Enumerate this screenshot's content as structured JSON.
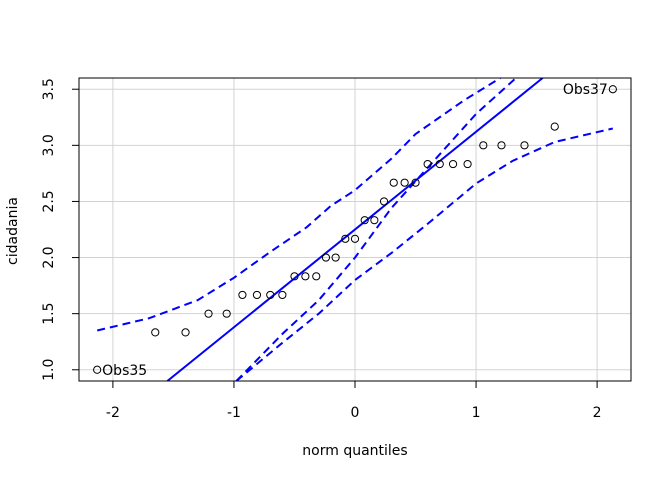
{
  "chart_data": {
    "type": "scatter",
    "title": "",
    "xlabel": "norm quantiles",
    "ylabel": "cidadania",
    "xlim": [
      -2.28,
      2.28
    ],
    "ylim": [
      0.9,
      3.6
    ],
    "x_ticks": [
      -2,
      -1,
      0,
      1,
      2
    ],
    "x_tick_labels": [
      "-2",
      "-1",
      "0",
      "1",
      "2"
    ],
    "y_ticks": [
      1.0,
      1.5,
      2.0,
      2.5,
      3.0,
      3.5
    ],
    "y_tick_labels": [
      "1.0",
      "1.5",
      "2.0",
      "2.5",
      "3.0",
      "3.5"
    ],
    "grid": true,
    "points": [
      {
        "x": -2.13,
        "y": 1.0
      },
      {
        "x": -1.65,
        "y": 1.333
      },
      {
        "x": -1.4,
        "y": 1.333
      },
      {
        "x": -1.21,
        "y": 1.5
      },
      {
        "x": -1.06,
        "y": 1.5
      },
      {
        "x": -0.93,
        "y": 1.667
      },
      {
        "x": -0.81,
        "y": 1.667
      },
      {
        "x": -0.7,
        "y": 1.667
      },
      {
        "x": -0.6,
        "y": 1.667
      },
      {
        "x": -0.5,
        "y": 1.833
      },
      {
        "x": -0.41,
        "y": 1.833
      },
      {
        "x": -0.32,
        "y": 1.833
      },
      {
        "x": -0.24,
        "y": 2.0
      },
      {
        "x": -0.16,
        "y": 2.0
      },
      {
        "x": -0.08,
        "y": 2.167
      },
      {
        "x": 0.0,
        "y": 2.167
      },
      {
        "x": 0.08,
        "y": 2.333
      },
      {
        "x": 0.16,
        "y": 2.333
      },
      {
        "x": 0.24,
        "y": 2.5
      },
      {
        "x": 0.32,
        "y": 2.667
      },
      {
        "x": 0.41,
        "y": 2.667
      },
      {
        "x": 0.5,
        "y": 2.667
      },
      {
        "x": 0.6,
        "y": 2.833
      },
      {
        "x": 0.7,
        "y": 2.833
      },
      {
        "x": 0.81,
        "y": 2.833
      },
      {
        "x": 0.93,
        "y": 2.833
      },
      {
        "x": 1.06,
        "y": 3.0
      },
      {
        "x": 1.21,
        "y": 3.0
      },
      {
        "x": 1.4,
        "y": 3.0
      },
      {
        "x": 1.65,
        "y": 3.167
      },
      {
        "x": 2.13,
        "y": 3.5
      }
    ],
    "reference_line": {
      "color": "#0000ff",
      "points": [
        [
          -1.55,
          0.9
        ],
        [
          1.55,
          3.6
        ]
      ]
    },
    "envelope": {
      "color": "#0000ff",
      "style": "dashed",
      "upper": [
        [
          -0.98,
          0.9
        ],
        [
          -0.6,
          1.32
        ],
        [
          -0.3,
          1.62
        ],
        [
          0.0,
          2.0
        ],
        [
          0.3,
          2.44
        ],
        [
          0.6,
          2.8
        ],
        [
          1.0,
          3.28
        ],
        [
          1.33,
          3.6
        ]
      ],
      "lower": [
        [
          -2.13,
          1.35
        ],
        [
          -1.7,
          1.46
        ],
        [
          -1.3,
          1.62
        ],
        [
          -1.0,
          1.82
        ],
        [
          -0.7,
          2.05
        ],
        [
          -0.4,
          2.27
        ],
        [
          -0.2,
          2.46
        ],
        [
          0.0,
          2.6
        ],
        [
          0.3,
          2.88
        ],
        [
          0.5,
          3.1
        ],
        [
          0.9,
          3.4
        ],
        [
          1.2,
          3.6
        ]
      ],
      "lower_band": [
        [
          -0.98,
          0.9
        ],
        [
          -0.6,
          1.24
        ],
        [
          -0.3,
          1.5
        ],
        [
          0.0,
          1.8
        ],
        [
          0.3,
          2.04
        ],
        [
          0.6,
          2.3
        ],
        [
          1.0,
          2.66
        ],
        [
          1.3,
          2.86
        ],
        [
          1.65,
          3.03
        ],
        [
          2.13,
          3.15
        ]
      ]
    },
    "point_labels": [
      {
        "text": "Obs35",
        "x": -2.13,
        "y": 1.0,
        "side": "right"
      },
      {
        "text": "Obs37",
        "x": 2.13,
        "y": 3.5,
        "side": "left"
      }
    ]
  }
}
